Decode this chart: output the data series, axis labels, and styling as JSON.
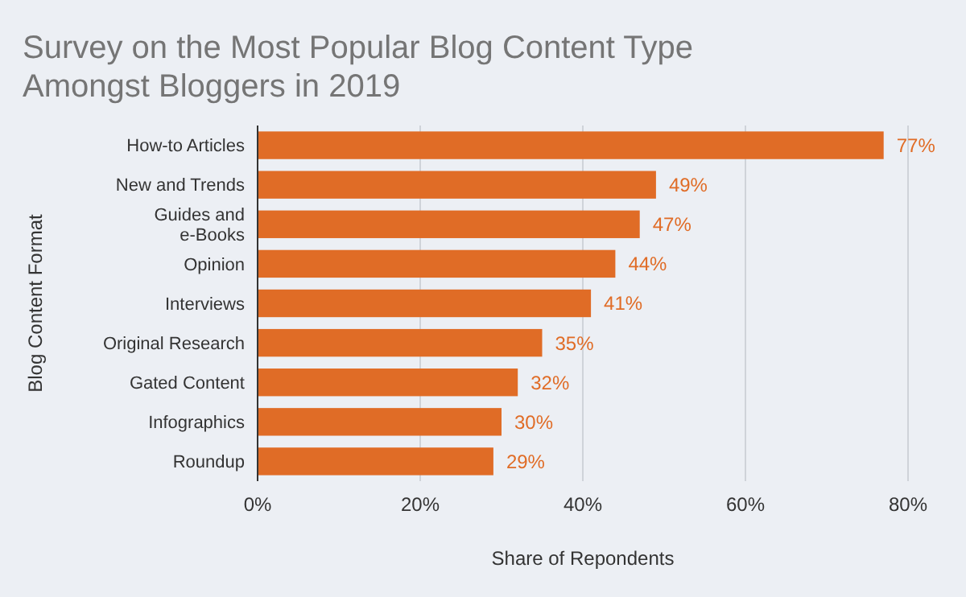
{
  "chart_data": {
    "type": "bar",
    "orientation": "horizontal",
    "title": "Survey on the Most Popular Blog Content Type Amongst Bloggers in 2019",
    "xlabel": "Share of Repondents",
    "ylabel": "Blog Content Format",
    "categories": [
      "How-to Articles",
      "New and Trends",
      "Guides and\ne-Books",
      "Opinion",
      "Interviews",
      "Original Research",
      "Gated Content",
      "Infographics",
      "Roundup"
    ],
    "values": [
      77,
      49,
      47,
      44,
      41,
      35,
      32,
      30,
      29
    ],
    "value_labels": [
      "77%",
      "49%",
      "47%",
      "44%",
      "41%",
      "35%",
      "32%",
      "30%",
      "29%"
    ],
    "color": "#e06c26",
    "xlim": [
      0,
      80
    ],
    "xticks": [
      {
        "value": 0,
        "label": "0%"
      },
      {
        "value": 20,
        "label": "20%"
      },
      {
        "value": 40,
        "label": "40%"
      },
      {
        "value": 60,
        "label": "60%"
      },
      {
        "value": 80,
        "label": "80%"
      }
    ],
    "grid": "x"
  }
}
